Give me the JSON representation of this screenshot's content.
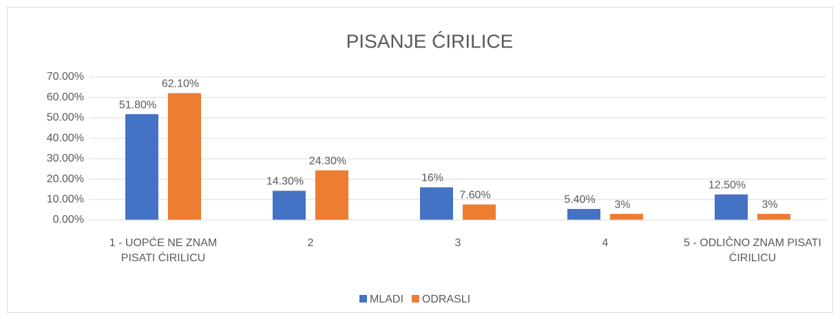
{
  "chart_data": {
    "type": "bar",
    "title": "PISANJE ĆIRILICE",
    "categories": [
      "1 - UOPĆE NE ZNAM PISATI ĆIRILICU",
      "2",
      "3",
      "4",
      "5 - ODLIČNO ZNAM PISATI ĆIRILICU"
    ],
    "series": [
      {
        "name": "MLADI",
        "color": "#4472c4",
        "values": [
          51.8,
          14.3,
          16,
          5.4,
          12.5
        ],
        "value_labels": [
          "51.80%",
          "14.30%",
          "16%",
          "5.40%",
          "12.50%"
        ]
      },
      {
        "name": "ODRASLI",
        "color": "#ed7d31",
        "values": [
          62.1,
          24.3,
          7.6,
          3,
          3
        ],
        "value_labels": [
          "62.10%",
          "24.30%",
          "7.60%",
          "3%",
          "3%"
        ]
      }
    ],
    "ylim": [
      0,
      70
    ],
    "yticks": [
      {
        "value": 0,
        "label": "0.00%"
      },
      {
        "value": 10,
        "label": "10.00%"
      },
      {
        "value": 20,
        "label": "20.00%"
      },
      {
        "value": 30,
        "label": "30.00%"
      },
      {
        "value": 40,
        "label": "40.00%"
      },
      {
        "value": 50,
        "label": "50.00%"
      },
      {
        "value": 60,
        "label": "60.00%"
      },
      {
        "value": 70,
        "label": "70.00%"
      }
    ],
    "grid": true,
    "legend": "bottom"
  }
}
